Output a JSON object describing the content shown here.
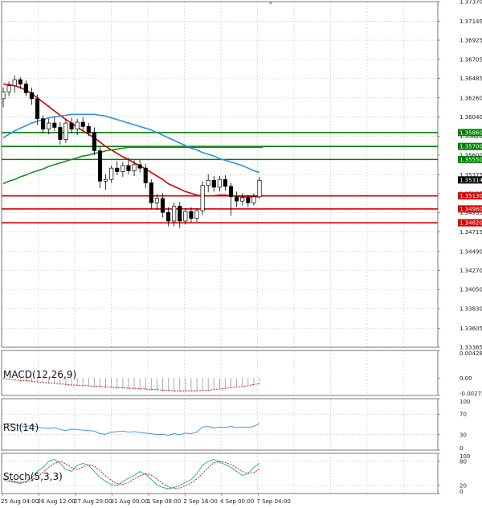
{
  "chart_data": {
    "type": "candlestick",
    "price_axis": {
      "ylim": [
        1.33385,
        1.3737
      ],
      "ticks": [
        "1.37370",
        "1.37145",
        "1.36925",
        "1.36705",
        "1.36485",
        "1.36260",
        "1.36040",
        "1.35820",
        "1.35600",
        "1.35375",
        "1.35155",
        "1.34935",
        "1.34715",
        "1.34490",
        "1.34270",
        "1.34050",
        "1.33830",
        "1.33605",
        "1.33385"
      ]
    },
    "current_price": {
      "label": "1.35314",
      "value": 1.35314
    },
    "levels": [
      {
        "label": "1.35860",
        "value": 1.3586,
        "color": "#008000"
      },
      {
        "label": "1.35700",
        "value": 1.357,
        "color": "#008000"
      },
      {
        "label": "1.35550",
        "value": 1.3555,
        "color": "#008000"
      },
      {
        "label": "1.35130",
        "value": 1.3513,
        "color": "#d40000"
      },
      {
        "label": "1.34980",
        "value": 1.3498,
        "color": "#d40000"
      },
      {
        "label": "1.34820",
        "value": 1.3482,
        "color": "#d40000"
      }
    ],
    "time_axis": {
      "labels": [
        "25 Aug 04:00",
        "26 Aug 12:00",
        "27 Aug 20:00",
        "31 Aug 00:00",
        "1 Sep 08:00",
        "2 Sep 16:00",
        "4 Sep 00:00",
        "7 Sep 04:00"
      ]
    },
    "candles": [
      {
        "o": 1.3625,
        "h": 1.3638,
        "l": 1.3615,
        "c": 1.3633
      },
      {
        "o": 1.3633,
        "h": 1.3645,
        "l": 1.3628,
        "c": 1.364
      },
      {
        "o": 1.364,
        "h": 1.3652,
        "l": 1.3632,
        "c": 1.3647
      },
      {
        "o": 1.3647,
        "h": 1.365,
        "l": 1.3636,
        "c": 1.3642
      },
      {
        "o": 1.3642,
        "h": 1.3646,
        "l": 1.3628,
        "c": 1.3632
      },
      {
        "o": 1.3632,
        "h": 1.3638,
        "l": 1.3618,
        "c": 1.3625
      },
      {
        "o": 1.3625,
        "h": 1.363,
        "l": 1.3595,
        "c": 1.3602
      },
      {
        "o": 1.3602,
        "h": 1.3606,
        "l": 1.3585,
        "c": 1.359
      },
      {
        "o": 1.359,
        "h": 1.3602,
        "l": 1.3584,
        "c": 1.3597
      },
      {
        "o": 1.3597,
        "h": 1.3604,
        "l": 1.3588,
        "c": 1.3592
      },
      {
        "o": 1.3592,
        "h": 1.3598,
        "l": 1.3572,
        "c": 1.3578
      },
      {
        "o": 1.3578,
        "h": 1.3602,
        "l": 1.3574,
        "c": 1.3597
      },
      {
        "o": 1.3597,
        "h": 1.3603,
        "l": 1.3585,
        "c": 1.359
      },
      {
        "o": 1.359,
        "h": 1.3602,
        "l": 1.3583,
        "c": 1.3598
      },
      {
        "o": 1.3598,
        "h": 1.3604,
        "l": 1.3588,
        "c": 1.3593
      },
      {
        "o": 1.3593,
        "h": 1.3597,
        "l": 1.3582,
        "c": 1.3586
      },
      {
        "o": 1.3586,
        "h": 1.3592,
        "l": 1.356,
        "c": 1.3565
      },
      {
        "o": 1.3565,
        "h": 1.357,
        "l": 1.3522,
        "c": 1.353
      },
      {
        "o": 1.353,
        "h": 1.3538,
        "l": 1.352,
        "c": 1.3532
      },
      {
        "o": 1.3532,
        "h": 1.3548,
        "l": 1.3528,
        "c": 1.3545
      },
      {
        "o": 1.3545,
        "h": 1.3553,
        "l": 1.3537,
        "c": 1.3541
      },
      {
        "o": 1.3541,
        "h": 1.3552,
        "l": 1.3535,
        "c": 1.3548
      },
      {
        "o": 1.3548,
        "h": 1.3557,
        "l": 1.3538,
        "c": 1.3542
      },
      {
        "o": 1.3542,
        "h": 1.3554,
        "l": 1.3536,
        "c": 1.3549
      },
      {
        "o": 1.3549,
        "h": 1.3555,
        "l": 1.354,
        "c": 1.3545
      },
      {
        "o": 1.3545,
        "h": 1.355,
        "l": 1.3522,
        "c": 1.3528
      },
      {
        "o": 1.3528,
        "h": 1.3532,
        "l": 1.3498,
        "c": 1.3505
      },
      {
        "o": 1.3505,
        "h": 1.3515,
        "l": 1.3497,
        "c": 1.351
      },
      {
        "o": 1.351,
        "h": 1.3516,
        "l": 1.3488,
        "c": 1.3494
      },
      {
        "o": 1.3494,
        "h": 1.35,
        "l": 1.3478,
        "c": 1.3484
      },
      {
        "o": 1.3484,
        "h": 1.3505,
        "l": 1.3478,
        "c": 1.3501
      },
      {
        "o": 1.3501,
        "h": 1.3506,
        "l": 1.3476,
        "c": 1.3484
      },
      {
        "o": 1.3484,
        "h": 1.3499,
        "l": 1.348,
        "c": 1.3495
      },
      {
        "o": 1.3495,
        "h": 1.35,
        "l": 1.3482,
        "c": 1.3487
      },
      {
        "o": 1.3487,
        "h": 1.3499,
        "l": 1.3483,
        "c": 1.3496
      },
      {
        "o": 1.3496,
        "h": 1.353,
        "l": 1.3491,
        "c": 1.3525
      },
      {
        "o": 1.3525,
        "h": 1.3538,
        "l": 1.3517,
        "c": 1.3531
      },
      {
        "o": 1.3531,
        "h": 1.3536,
        "l": 1.3518,
        "c": 1.3523
      },
      {
        "o": 1.3523,
        "h": 1.3536,
        "l": 1.3518,
        "c": 1.3532
      },
      {
        "o": 1.3532,
        "h": 1.3537,
        "l": 1.3519,
        "c": 1.3524
      },
      {
        "o": 1.3524,
        "h": 1.3528,
        "l": 1.349,
        "c": 1.3512
      },
      {
        "o": 1.3512,
        "h": 1.3518,
        "l": 1.35,
        "c": 1.3507
      },
      {
        "o": 1.3507,
        "h": 1.3516,
        "l": 1.3502,
        "c": 1.3511
      },
      {
        "o": 1.3511,
        "h": 1.3514,
        "l": 1.35,
        "c": 1.3505
      },
      {
        "o": 1.3505,
        "h": 1.3516,
        "l": 1.3502,
        "c": 1.3512
      },
      {
        "o": 1.3512,
        "h": 1.3535,
        "l": 1.351,
        "c": 1.3531
      }
    ],
    "moving_averages": [
      {
        "color": "#d40000",
        "values": [
          1.3642,
          1.3641,
          1.364,
          1.3638,
          1.3635,
          1.3631,
          1.3626,
          1.3621,
          1.3616,
          1.3611,
          1.3606,
          1.3601,
          1.3597,
          1.3592,
          1.3588,
          1.3584,
          1.358,
          1.3575,
          1.357,
          1.3566,
          1.3562,
          1.3558,
          1.3555,
          1.3551,
          1.3548,
          1.3544,
          1.354,
          1.3536,
          1.3532,
          1.3527,
          1.3524,
          1.3521,
          1.3518,
          1.3516,
          1.3514,
          1.3513,
          1.3513,
          1.3513,
          1.3514,
          1.3514,
          1.3513,
          1.3513,
          1.3512,
          1.3512,
          1.3512,
          1.3512
        ]
      },
      {
        "color": "#2e8fe8",
        "values": [
          1.358,
          1.3584,
          1.3588,
          1.3591,
          1.3594,
          1.3597,
          1.3599,
          1.3601,
          1.3603,
          1.3604,
          1.3605,
          1.3606,
          1.3607,
          1.3607,
          1.3607,
          1.3607,
          1.3607,
          1.3606,
          1.3605,
          1.3603,
          1.3601,
          1.3599,
          1.3597,
          1.3595,
          1.3593,
          1.3591,
          1.3589,
          1.3586,
          1.3583,
          1.358,
          1.3577,
          1.3574,
          1.3571,
          1.3568,
          1.3566,
          1.3563,
          1.3561,
          1.3559,
          1.3556,
          1.3554,
          1.3552,
          1.355,
          1.3548,
          1.3545,
          1.3542,
          1.354
        ]
      },
      {
        "color": "#1f8a1f",
        "values": [
          1.3527,
          1.353,
          1.3532,
          1.3535,
          1.3537,
          1.354,
          1.3542,
          1.3544,
          1.3547,
          1.3549,
          1.3551,
          1.3553,
          1.3555,
          1.3557,
          1.3559,
          1.356,
          1.3562,
          1.3563,
          1.3565,
          1.3566,
          1.3567,
          1.3568,
          1.3569,
          1.3569,
          1.3569,
          1.3569,
          1.3569,
          1.3569,
          1.3569,
          1.3569,
          1.3569,
          1.3569,
          1.3569,
          1.3569,
          1.3569,
          1.3569,
          1.3569,
          1.3569,
          1.3569,
          1.3569,
          1.3569,
          1.3569,
          1.3569,
          1.3569,
          1.3569,
          1.3569
        ]
      }
    ],
    "indicators": [
      {
        "name": "MACD(12,26,9)",
        "ticks": [
          "0.004285",
          "0.00",
          "-0.00272"
        ],
        "ylim": [
          -0.00272,
          0.004285
        ],
        "histogram": [
          -0.0001,
          -0.0002,
          -0.0003,
          -0.0004,
          -0.0005,
          -0.0006,
          -0.0007,
          -0.0008,
          -0.0009,
          -0.001,
          -0.0011,
          -0.0012,
          -0.0012,
          -0.0013,
          -0.0013,
          -0.0014,
          -0.0014,
          -0.0015,
          -0.0016,
          -0.0016,
          -0.0017,
          -0.0017,
          -0.0018,
          -0.0018,
          -0.0019,
          -0.0019,
          -0.002,
          -0.002,
          -0.0021,
          -0.0021,
          -0.0022,
          -0.0022,
          -0.0022,
          -0.0021,
          -0.0021,
          -0.002,
          -0.0019,
          -0.0018,
          -0.0017,
          -0.0016,
          -0.0015,
          -0.0013,
          -0.0012,
          -0.001,
          -0.0008,
          -0.0006
        ],
        "signal": [
          -0.0001,
          -0.0002,
          -0.0003,
          -0.0004,
          -0.0004,
          -0.0005,
          -0.0006,
          -0.0007,
          -0.0008,
          -0.0008,
          -0.0009,
          -0.001,
          -0.0011,
          -0.0011,
          -0.0012,
          -0.0012,
          -0.0013,
          -0.0013,
          -0.0014,
          -0.0014,
          -0.0015,
          -0.0015,
          -0.0016,
          -0.0016,
          -0.0017,
          -0.0017,
          -0.0018,
          -0.0018,
          -0.0019,
          -0.0019,
          -0.002,
          -0.002,
          -0.002,
          -0.002,
          -0.002,
          -0.0019,
          -0.0019,
          -0.0018,
          -0.0017,
          -0.0016,
          -0.0015,
          -0.0014,
          -0.0013,
          -0.0012,
          -0.001,
          -0.0009
        ]
      },
      {
        "name": "RSI(14)",
        "ticks": [
          "100",
          "70",
          "30",
          "0"
        ],
        "ylim": [
          0,
          100
        ],
        "levels": [
          70,
          30
        ],
        "values": [
          50,
          52,
          49,
          47,
          46,
          48,
          45,
          43,
          42,
          44,
          40,
          38,
          41,
          40,
          39,
          38,
          37,
          32,
          31,
          35,
          36,
          37,
          35,
          36,
          34,
          33,
          32,
          30,
          31,
          29,
          32,
          30,
          33,
          32,
          35,
          45,
          46,
          43,
          45,
          44,
          46,
          44,
          45,
          44,
          46,
          52
        ]
      },
      {
        "name": "Stoch(5,3,3)",
        "ticks": [
          "100",
          "80",
          "20",
          "0"
        ],
        "ylim": [
          0,
          100
        ],
        "levels": [
          80,
          20
        ],
        "main": [
          35,
          30,
          28,
          25,
          30,
          40,
          55,
          65,
          80,
          85,
          75,
          60,
          55,
          70,
          75,
          70,
          55,
          40,
          30,
          22,
          20,
          30,
          38,
          45,
          55,
          48,
          35,
          22,
          15,
          12,
          15,
          20,
          28,
          35,
          50,
          70,
          80,
          85,
          78,
          72,
          65,
          55,
          45,
          50,
          65,
          75
        ],
        "signal": [
          38,
          34,
          30,
          28,
          28,
          33,
          42,
          53,
          65,
          75,
          80,
          74,
          65,
          60,
          66,
          72,
          68,
          57,
          43,
          33,
          25,
          23,
          28,
          36,
          44,
          49,
          46,
          36,
          25,
          17,
          13,
          14,
          20,
          26,
          36,
          50,
          64,
          77,
          80,
          77,
          72,
          64,
          55,
          50,
          52,
          61
        ]
      }
    ]
  }
}
